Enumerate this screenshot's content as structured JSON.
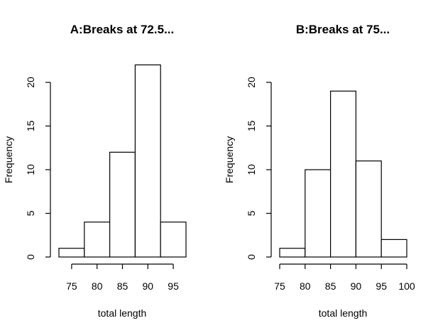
{
  "chart_data": [
    {
      "type": "bar",
      "title": "A:Breaks at 72.5...",
      "xlabel": "total length",
      "ylabel": "Frequency",
      "bins": [
        {
          "start": 72.5,
          "end": 77.5,
          "count": 1
        },
        {
          "start": 77.5,
          "end": 82.5,
          "count": 4
        },
        {
          "start": 82.5,
          "end": 87.5,
          "count": 12
        },
        {
          "start": 87.5,
          "end": 92.5,
          "count": 22
        },
        {
          "start": 92.5,
          "end": 97.5,
          "count": 4
        }
      ],
      "xticks": [
        75,
        80,
        85,
        90,
        95
      ],
      "xtick_labels": [
        "75",
        "80",
        "85",
        "90",
        "95"
      ],
      "yticks": [
        0,
        5,
        10,
        15,
        20
      ],
      "ytick_labels": [
        "0",
        "5",
        "10",
        "15",
        "20"
      ],
      "xlim": [
        72.5,
        97.5
      ],
      "ylim": [
        0,
        22
      ],
      "grid": false
    },
    {
      "type": "bar",
      "title": "B:Breaks at 75...",
      "xlabel": "total length",
      "ylabel": "Frequency",
      "bins": [
        {
          "start": 75,
          "end": 80,
          "count": 1
        },
        {
          "start": 80,
          "end": 85,
          "count": 10
        },
        {
          "start": 85,
          "end": 90,
          "count": 19
        },
        {
          "start": 90,
          "end": 95,
          "count": 11
        },
        {
          "start": 95,
          "end": 100,
          "count": 2
        }
      ],
      "xticks": [
        75,
        80,
        85,
        90,
        95,
        100
      ],
      "xtick_labels": [
        "75",
        "80",
        "85",
        "90",
        "95",
        "100"
      ],
      "yticks": [
        0,
        5,
        10,
        15,
        20
      ],
      "ytick_labels": [
        "0",
        "5",
        "10",
        "15",
        "20"
      ],
      "xlim": [
        75,
        100
      ],
      "ylim": [
        0,
        22
      ],
      "grid": false
    }
  ]
}
